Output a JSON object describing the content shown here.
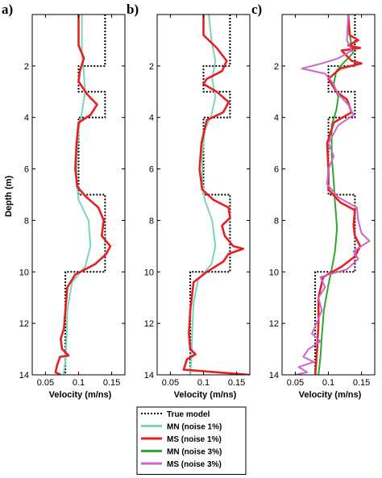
{
  "chart_data": [
    {
      "panel": "a)",
      "type": "line",
      "ylabel": "Depth (m)",
      "xlabel": "Velocity (m/ns)",
      "xlim": [
        0.03,
        0.17
      ],
      "ylim": [
        0,
        14
      ],
      "xticks": [
        0.05,
        0.1,
        0.15
      ],
      "yticks": [
        2,
        4,
        6,
        8,
        10,
        12,
        14
      ],
      "series": [
        {
          "name": "True model",
          "color": "#000000",
          "style": "dotted",
          "points": [
            [
              0.14,
              0
            ],
            [
              0.14,
              2
            ],
            [
              0.1,
              2
            ],
            [
              0.1,
              3
            ],
            [
              0.14,
              3
            ],
            [
              0.14,
              4
            ],
            [
              0.1,
              4
            ],
            [
              0.1,
              7
            ],
            [
              0.14,
              7
            ],
            [
              0.14,
              10
            ],
            [
              0.08,
              10
            ],
            [
              0.08,
              14
            ]
          ]
        },
        {
          "name": "MN (noise 1%)",
          "color": "#7fd3bc",
          "style": "solid",
          "points": [
            [
              0.105,
              0
            ],
            [
              0.105,
              1.5
            ],
            [
              0.108,
              2.3
            ],
            [
              0.11,
              3
            ],
            [
              0.105,
              3.8
            ],
            [
              0.1,
              4.5
            ],
            [
              0.097,
              5.5
            ],
            [
              0.097,
              6.5
            ],
            [
              0.1,
              7.2
            ],
            [
              0.115,
              8
            ],
            [
              0.118,
              9
            ],
            [
              0.11,
              9.8
            ],
            [
              0.09,
              10.4
            ],
            [
              0.083,
              11.5
            ],
            [
              0.082,
              12.5
            ],
            [
              0.08,
              13.5
            ],
            [
              0.077,
              14
            ]
          ]
        },
        {
          "name": "MS (noise 1%)",
          "color": "#e62020",
          "style": "solid",
          "points": [
            [
              0.1,
              0
            ],
            [
              0.1,
              1.2
            ],
            [
              0.108,
              1.7
            ],
            [
              0.102,
              2.2
            ],
            [
              0.1,
              2.6
            ],
            [
              0.113,
              3.1
            ],
            [
              0.128,
              3.5
            ],
            [
              0.118,
              3.9
            ],
            [
              0.1,
              4.2
            ],
            [
              0.097,
              5
            ],
            [
              0.095,
              6
            ],
            [
              0.098,
              6.7
            ],
            [
              0.112,
              7.1
            ],
            [
              0.13,
              7.5
            ],
            [
              0.138,
              8
            ],
            [
              0.135,
              8.6
            ],
            [
              0.148,
              9
            ],
            [
              0.142,
              9.3
            ],
            [
              0.125,
              9.7
            ],
            [
              0.095,
              10.1
            ],
            [
              0.083,
              10.6
            ],
            [
              0.08,
              11.5
            ],
            [
              0.078,
              12.2
            ],
            [
              0.073,
              12.6
            ],
            [
              0.075,
              13
            ],
            [
              0.085,
              13.25
            ],
            [
              0.072,
              13.3
            ],
            [
              0.068,
              13.6
            ],
            [
              0.065,
              13.9
            ],
            [
              0.073,
              14
            ]
          ]
        }
      ]
    },
    {
      "panel": "b)",
      "type": "line",
      "ylabel": "Depth (m)",
      "xlabel": "Velocity (m/ns)",
      "xlim": [
        0.03,
        0.17
      ],
      "ylim": [
        0,
        14
      ],
      "xticks": [
        0.05,
        0.1,
        0.15
      ],
      "yticks": [
        2,
        4,
        6,
        8,
        10,
        12,
        14
      ],
      "series": [
        {
          "name": "True model",
          "color": "#000000",
          "style": "dotted",
          "points": [
            [
              0.14,
              0
            ],
            [
              0.14,
              2
            ],
            [
              0.1,
              2
            ],
            [
              0.1,
              3
            ],
            [
              0.14,
              3
            ],
            [
              0.14,
              4
            ],
            [
              0.1,
              4
            ],
            [
              0.1,
              7
            ],
            [
              0.14,
              7
            ],
            [
              0.14,
              10
            ],
            [
              0.08,
              10
            ],
            [
              0.08,
              14
            ]
          ]
        },
        {
          "name": "MN (noise 1%)",
          "color": "#7fd3bc",
          "style": "solid",
          "points": [
            [
              0.108,
              0
            ],
            [
              0.112,
              1
            ],
            [
              0.118,
              1.8
            ],
            [
              0.113,
              2.5
            ],
            [
              0.118,
              3.2
            ],
            [
              0.112,
              3.9
            ],
            [
              0.102,
              4.5
            ],
            [
              0.098,
              5.5
            ],
            [
              0.098,
              6.5
            ],
            [
              0.102,
              7.2
            ],
            [
              0.113,
              8
            ],
            [
              0.118,
              9
            ],
            [
              0.112,
              9.7
            ],
            [
              0.092,
              10.3
            ],
            [
              0.085,
              11.2
            ],
            [
              0.083,
              12.3
            ],
            [
              0.082,
              13.2
            ],
            [
              0.08,
              14
            ]
          ]
        },
        {
          "name": "MS (noise 1%)",
          "color": "#e62020",
          "style": "solid",
          "points": [
            [
              0.1,
              0
            ],
            [
              0.1,
              0.8
            ],
            [
              0.12,
              1.3
            ],
            [
              0.135,
              1.8
            ],
            [
              0.128,
              2.2
            ],
            [
              0.105,
              2.5
            ],
            [
              0.1,
              2.7
            ],
            [
              0.12,
              3
            ],
            [
              0.138,
              3.4
            ],
            [
              0.13,
              3.8
            ],
            [
              0.105,
              4.1
            ],
            [
              0.097,
              5
            ],
            [
              0.094,
              6
            ],
            [
              0.098,
              6.8
            ],
            [
              0.115,
              7.2
            ],
            [
              0.138,
              7.5
            ],
            [
              0.14,
              7.9
            ],
            [
              0.128,
              8.2
            ],
            [
              0.132,
              8.6
            ],
            [
              0.145,
              9
            ],
            [
              0.16,
              9.1
            ],
            [
              0.138,
              9.3
            ],
            [
              0.13,
              9.6
            ],
            [
              0.105,
              10
            ],
            [
              0.085,
              10.4
            ],
            [
              0.08,
              11.5
            ],
            [
              0.078,
              12.4
            ],
            [
              0.08,
              13
            ],
            [
              0.088,
              13.2
            ],
            [
              0.075,
              13.4
            ],
            [
              0.07,
              13.8
            ],
            [
              0.17,
              14
            ]
          ]
        }
      ]
    },
    {
      "panel": "c)",
      "type": "line",
      "ylabel": "Depth (m)",
      "xlabel": "Velocity (m/ns)",
      "xlim": [
        0.03,
        0.17
      ],
      "ylim": [
        0,
        14
      ],
      "xticks": [
        0.05,
        0.1,
        0.15
      ],
      "yticks": [
        2,
        4,
        6,
        8,
        10,
        12,
        14
      ],
      "series": [
        {
          "name": "True model",
          "color": "#000000",
          "style": "dotted",
          "points": [
            [
              0.14,
              0
            ],
            [
              0.14,
              2
            ],
            [
              0.1,
              2
            ],
            [
              0.1,
              3
            ],
            [
              0.14,
              3
            ],
            [
              0.14,
              4
            ],
            [
              0.1,
              4
            ],
            [
              0.1,
              7
            ],
            [
              0.14,
              7
            ],
            [
              0.14,
              10
            ],
            [
              0.08,
              10
            ],
            [
              0.08,
              14
            ]
          ]
        },
        {
          "name": "MN (noise 3%)",
          "color": "#2fa82f",
          "style": "solid",
          "points": [
            [
              0.13,
              0
            ],
            [
              0.133,
              0.9
            ],
            [
              0.137,
              1.5
            ],
            [
              0.122,
              1.9
            ],
            [
              0.112,
              2.2
            ],
            [
              0.108,
              2.7
            ],
            [
              0.115,
              3.2
            ],
            [
              0.112,
              3.7
            ],
            [
              0.105,
              4.3
            ],
            [
              0.105,
              5.5
            ],
            [
              0.108,
              6.5
            ],
            [
              0.11,
              7.3
            ],
            [
              0.113,
              8.3
            ],
            [
              0.11,
              9.2
            ],
            [
              0.105,
              9.9
            ],
            [
              0.1,
              10.5
            ],
            [
              0.093,
              11.5
            ],
            [
              0.09,
              12.5
            ],
            [
              0.088,
              13.3
            ],
            [
              0.085,
              14
            ]
          ]
        },
        {
          "name": "MS (noise 1%)",
          "color": "#e62020",
          "style": "solid",
          "points": [
            [
              0.13,
              0
            ],
            [
              0.132,
              0.8
            ],
            [
              0.145,
              1
            ],
            [
              0.13,
              1.2
            ],
            [
              0.148,
              1.3
            ],
            [
              0.12,
              1.4
            ],
            [
              0.135,
              1.8
            ],
            [
              0.15,
              1.9
            ],
            [
              0.118,
              2.1
            ],
            [
              0.1,
              2.5
            ],
            [
              0.112,
              3
            ],
            [
              0.128,
              3.3
            ],
            [
              0.135,
              3.8
            ],
            [
              0.108,
              4.2
            ],
            [
              0.098,
              5
            ],
            [
              0.1,
              6
            ],
            [
              0.1,
              6.8
            ],
            [
              0.118,
              7.3
            ],
            [
              0.14,
              7.6
            ],
            [
              0.138,
              8.2
            ],
            [
              0.14,
              8.6
            ],
            [
              0.148,
              9
            ],
            [
              0.14,
              9.4
            ],
            [
              0.12,
              9.8
            ],
            [
              0.092,
              10.2
            ],
            [
              0.085,
              11
            ],
            [
              0.085,
              12
            ],
            [
              0.083,
              13
            ],
            [
              0.08,
              14
            ]
          ]
        },
        {
          "name": "MS (noise 3%)",
          "color": "#cc66cc",
          "style": "solid",
          "points": [
            [
              0.13,
              0
            ],
            [
              0.128,
              1
            ],
            [
              0.135,
              1.4
            ],
            [
              0.115,
              1.7
            ],
            [
              0.09,
              1.9
            ],
            [
              0.06,
              2.1
            ],
            [
              0.095,
              2.3
            ],
            [
              0.105,
              2.6
            ],
            [
              0.115,
              3.1
            ],
            [
              0.13,
              3.5
            ],
            [
              0.138,
              3.9
            ],
            [
              0.115,
              4.3
            ],
            [
              0.1,
              5
            ],
            [
              0.108,
              5.5
            ],
            [
              0.1,
              6
            ],
            [
              0.098,
              6.6
            ],
            [
              0.115,
              7.1
            ],
            [
              0.143,
              7.5
            ],
            [
              0.145,
              8
            ],
            [
              0.15,
              8.5
            ],
            [
              0.162,
              8.8
            ],
            [
              0.138,
              9.2
            ],
            [
              0.145,
              9.5
            ],
            [
              0.128,
              9.9
            ],
            [
              0.088,
              10.2
            ],
            [
              0.095,
              10.6
            ],
            [
              0.085,
              11
            ],
            [
              0.09,
              11.5
            ],
            [
              0.082,
              12
            ],
            [
              0.075,
              12.4
            ],
            [
              0.088,
              12.7
            ],
            [
              0.07,
              13
            ],
            [
              0.062,
              13.3
            ],
            [
              0.078,
              13.5
            ],
            [
              0.055,
              13.7
            ],
            [
              0.068,
              13.9
            ],
            [
              0.05,
              14
            ]
          ]
        }
      ]
    }
  ],
  "legend": [
    {
      "label": "True model",
      "color": "#000000",
      "style": "dotted"
    },
    {
      "label": "MN (noise 1%)",
      "color": "#7fd3bc",
      "style": "solid"
    },
    {
      "label": "MS (noise 1%)",
      "color": "#e62020",
      "style": "solid"
    },
    {
      "label": "MN (noise  3%)",
      "color": "#2fa82f",
      "style": "solid"
    },
    {
      "label": "MS (noise  3%)",
      "color": "#cc66cc",
      "style": "solid"
    }
  ]
}
